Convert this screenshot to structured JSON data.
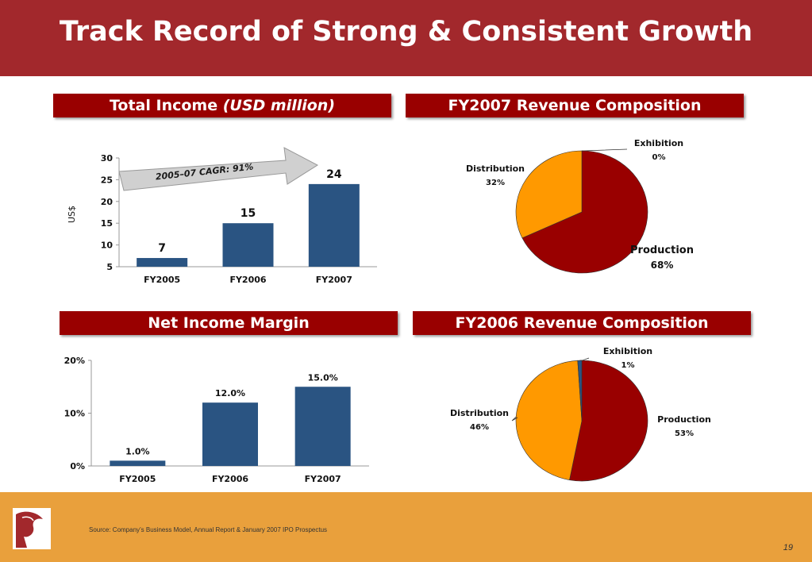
{
  "page": {
    "title": "Track Record of Strong & Consistent Growth",
    "source": "Source: Company’s Business Model, Annual Report & January 2007 IPO Prospectus",
    "page_number": "19"
  },
  "headers": {
    "total_income_main": "Total Income ",
    "total_income_unit": "(USD million)",
    "fy2007_comp": "FY2007 Revenue Composition",
    "net_margin": "Net Income Margin",
    "fy2006_comp": "FY2006 Revenue Composition"
  },
  "colors": {
    "bar": "#2a5482",
    "production": "#990000",
    "distribution": "#ff9900",
    "exhibition": "#2a5482",
    "header": "#990000",
    "footer": "#e9a03c"
  },
  "chart_data": [
    {
      "type": "bar",
      "ylabel": "US$",
      "categories": [
        "FY2005",
        "FY2006",
        "FY2007"
      ],
      "values": [
        7,
        15,
        24
      ],
      "data_labels": [
        "7",
        "15",
        "24"
      ],
      "ylim": [
        5,
        30
      ],
      "yticks": [
        "5",
        "10",
        "15",
        "20",
        "25",
        "30"
      ],
      "annotation": "2005–07 CAGR: 91%"
    },
    {
      "type": "pie",
      "labels": [
        "Production",
        "Distribution",
        "Exhibition"
      ],
      "values": [
        68,
        32,
        0
      ],
      "value_labels": [
        "68%",
        "32%",
        "0%"
      ]
    },
    {
      "type": "bar",
      "categories": [
        "FY2005",
        "FY2006",
        "FY2007"
      ],
      "values": [
        1.0,
        12.0,
        15.0
      ],
      "data_labels": [
        "1.0%",
        "12.0%",
        "15.0%"
      ],
      "ylim": [
        0,
        20
      ],
      "yticks": [
        "0%",
        "10%",
        "20%"
      ]
    },
    {
      "type": "pie",
      "labels": [
        "Production",
        "Distribution",
        "Exhibition"
      ],
      "values": [
        53,
        46,
        1
      ],
      "value_labels": [
        "53%",
        "46%",
        "1%"
      ]
    }
  ]
}
